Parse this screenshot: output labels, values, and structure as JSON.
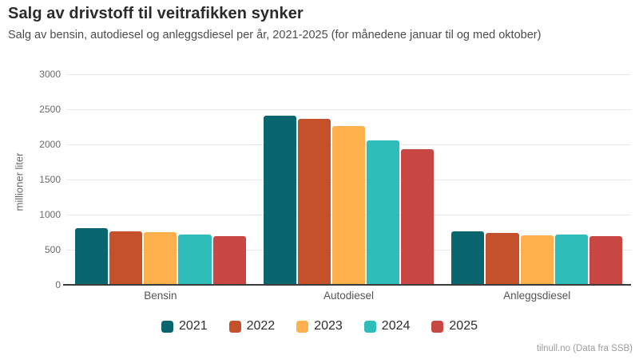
{
  "header": {
    "title": "Salg av drivstoff til veitrafikken synker",
    "subtitle": "Salg av bensin, autodiesel og anleggsdiesel per år, 2021-2025 (for månedene januar til og med oktober)"
  },
  "chart_data": {
    "type": "bar",
    "title": "Salg av drivstoff til veitrafikken synker",
    "subtitle": "Salg av bensin, autodiesel og anleggsdiesel per år, 2021-2025 (for månedene januar til og med oktober)",
    "categories": [
      "Bensin",
      "Autodiesel",
      "Anleggsdiesel"
    ],
    "series": [
      {
        "name": "2021",
        "color": "#09666f",
        "values": [
          805,
          2410,
          765
        ]
      },
      {
        "name": "2022",
        "color": "#c4512a",
        "values": [
          765,
          2365,
          735
        ]
      },
      {
        "name": "2023",
        "color": "#fdb04c",
        "values": [
          755,
          2260,
          710
        ]
      },
      {
        "name": "2024",
        "color": "#2fbdb9",
        "values": [
          715,
          2060,
          720
        ]
      },
      {
        "name": "2025",
        "color": "#c94743",
        "values": [
          690,
          1930,
          690
        ]
      }
    ],
    "xlabel": "",
    "ylabel": "millioner liter",
    "ylim": [
      0,
      3000
    ],
    "yticks": [
      0,
      500,
      1000,
      1500,
      2000,
      2500,
      3000
    ],
    "grid": true,
    "legend_position": "bottom"
  },
  "footer": {
    "credit": "tilnull.no (Data fra SSB)"
  },
  "colors": {
    "gridline": "#e8e8e8",
    "axis_line": "#3b3b3b",
    "background": "#ffffff"
  }
}
